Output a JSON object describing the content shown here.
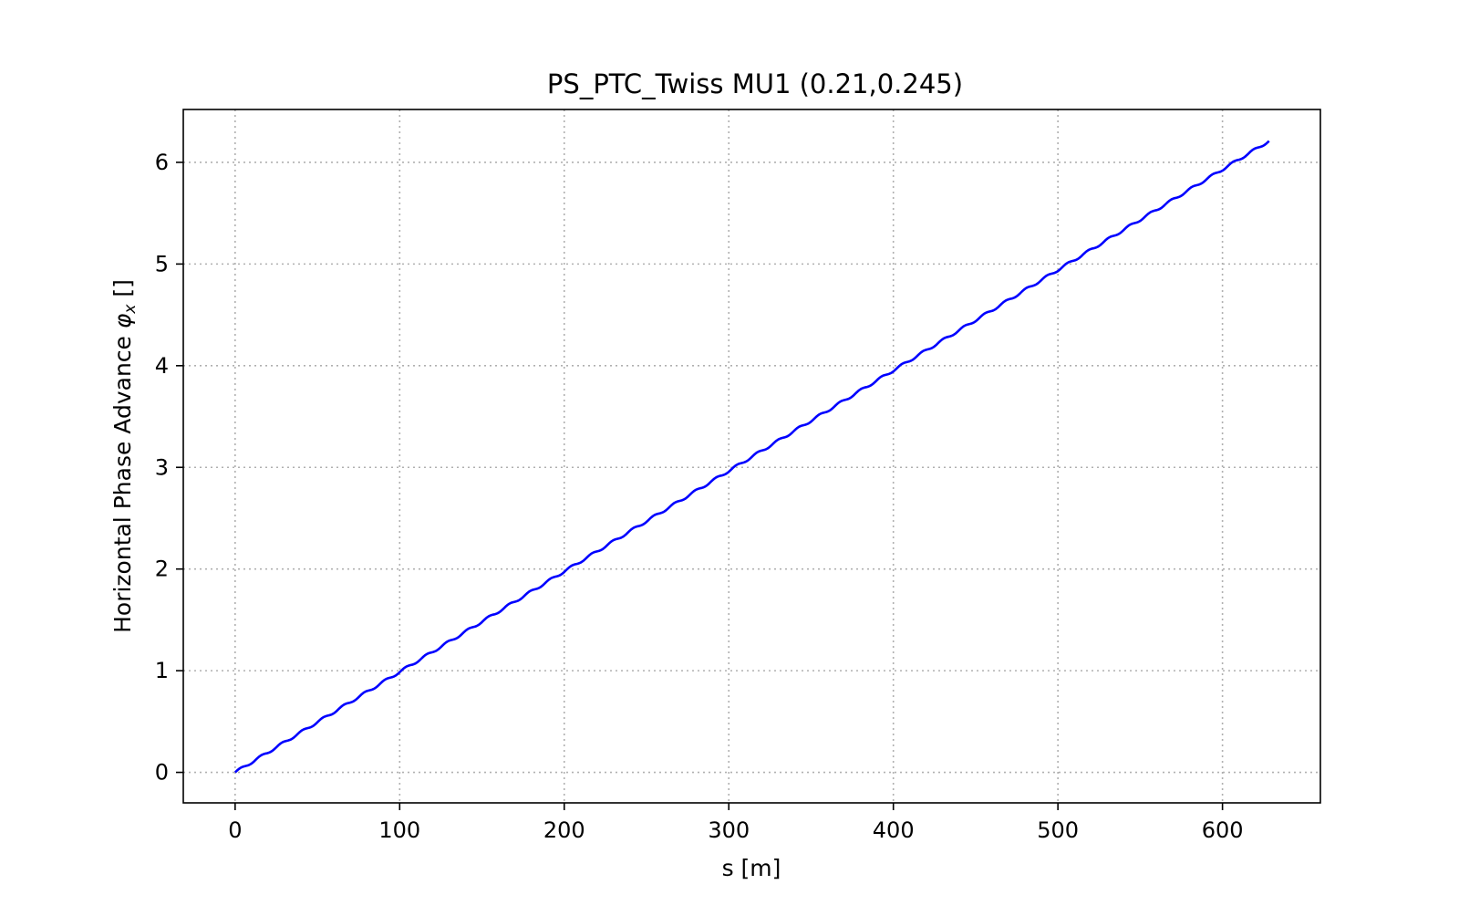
{
  "chart_data": {
    "type": "line",
    "title": "PS_PTC_Twiss MU1 (0.21,0.245)",
    "xlabel": "s [m]",
    "ylabel": "Horizontal Phase Advance",
    "ylabel_symbol": "φ",
    "ylabel_subscript": "x",
    "ylabel_unit": "[]",
    "xlim": [
      -31.5,
      659.5
    ],
    "ylim": [
      -0.3,
      6.52
    ],
    "xticks": [
      0,
      100,
      200,
      300,
      400,
      500,
      600
    ],
    "yticks": [
      0,
      1,
      2,
      3,
      4,
      5,
      6
    ],
    "grid": true,
    "line_color": "#0000ff",
    "series": [
      {
        "x_start": 0,
        "x_end": 628.3,
        "y_start": 0,
        "y_end": 6.21,
        "periods": 50,
        "ripple_amplitude": 0.012
      }
    ]
  }
}
